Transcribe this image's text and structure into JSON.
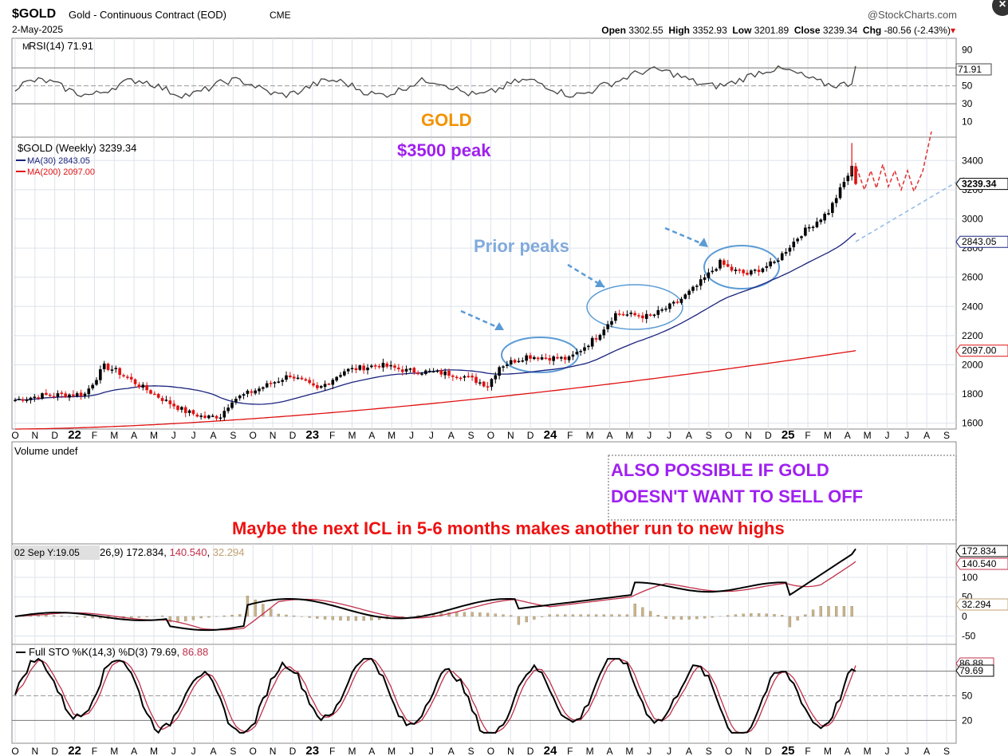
{
  "header": {
    "symbol": "$GOLD",
    "name": "Gold - Continuous Contract (EOD)",
    "exchange": "CME",
    "date": "2-May-2025",
    "source": "@StockCharts.com",
    "open_label": "Open",
    "open": "3302.55",
    "high_label": "High",
    "high": "3352.93",
    "low_label": "Low",
    "low": "3201.89",
    "close_label": "Close",
    "close": "3239.34",
    "chg_label": "Chg",
    "chg": "-80.56 (-2.43%)",
    "chg_arrow": "▾"
  },
  "rsi_panel": {
    "label": "RSI(14) 71.91",
    "value_tag": "71.91",
    "ticks": [
      90,
      70,
      50,
      30,
      10
    ],
    "lines": [
      70,
      50,
      30
    ]
  },
  "price_panel": {
    "legend_main": "$GOLD (Weekly) 3239.34",
    "legend_ma30": "MA(30) 2843.05",
    "legend_ma200": "MA(200) 2097.00",
    "ticks": [
      3400,
      3200,
      3000,
      2800,
      2600,
      2400,
      2200,
      2000,
      1800,
      1600
    ],
    "close_tag": "3239.34",
    "ma30_tag": "2843.05",
    "ma200_tag": "2097.00",
    "colors": {
      "up": "#000000",
      "down": "#e01010",
      "ma30": "#1a237e",
      "ma200": "#e01010"
    }
  },
  "annotations": {
    "gold": "GOLD",
    "peak": "$3500 peak",
    "prior_peaks": "Prior peaks",
    "also_possible": "ALSO POSSIBLE IF GOLD DOESN'T WANT TO SELL OFF",
    "next_icl": "Maybe the next ICL in 5-6 months makes another run to new highs",
    "colors": {
      "gold": "#f39200",
      "peak": "#a020f0",
      "prior": "#80aadc",
      "also": "#a020f0",
      "icl": "#ee1111"
    }
  },
  "volume_panel": {
    "label": "Volume undef"
  },
  "macd_panel": {
    "label": "MACD(12,26,9) 172.834, 140.540, 32.294",
    "label_prefix": "26,9) 172.834, ",
    "label_signal": "140.540",
    "label_hist": "32.294",
    "overlay": "02 Sep Y:19.05",
    "ticks": [
      "100",
      "50",
      "0",
      "-50"
    ],
    "tags": [
      "172.834",
      "140.540",
      "32.294"
    ]
  },
  "sto_panel": {
    "label_prefix": "Full STO %K(14,3) %D(3) 79.69, ",
    "label_d": "86.88",
    "ticks": [
      "50",
      "20"
    ],
    "tags": [
      "86.88",
      "79.69"
    ]
  },
  "x_axis": {
    "labels": [
      "O",
      "N",
      "D",
      "22",
      "F",
      "M",
      "A",
      "M",
      "J",
      "J",
      "A",
      "S",
      "O",
      "N",
      "D",
      "23",
      "F",
      "M",
      "A",
      "M",
      "J",
      "J",
      "A",
      "S",
      "O",
      "N",
      "D",
      "24",
      "F",
      "M",
      "A",
      "M",
      "J",
      "J",
      "A",
      "S",
      "O",
      "N",
      "D",
      "25",
      "F",
      "M",
      "A",
      "M",
      "J",
      "J",
      "A",
      "S"
    ],
    "bold": [
      "22",
      "23",
      "24",
      "25"
    ]
  },
  "chart_data": {
    "type": "candlestick",
    "title": "$GOLD Gold - Continuous Contract (EOD) Weekly",
    "series": [
      {
        "name": "$GOLD (Weekly)",
        "x": [
          "2021-10",
          "2021-12",
          "2022-03",
          "2022-05",
          "2022-07",
          "2022-09",
          "2022-11",
          "2023-01",
          "2023-03",
          "2023-05",
          "2023-07",
          "2023-09",
          "2023-10",
          "2023-12",
          "2024-02",
          "2024-04",
          "2024-06",
          "2024-08",
          "2024-10",
          "2024-12",
          "2025-02",
          "2025-04",
          "2025-05"
        ],
        "close": [
          1760,
          1780,
          1980,
          1850,
          1720,
          1650,
          1740,
          1920,
          1980,
          2030,
          1950,
          1930,
          1840,
          2050,
          2040,
          2330,
          2320,
          2450,
          2720,
          2620,
          2900,
          3400,
          3239.34
        ]
      },
      {
        "name": "MA(30)",
        "value": 2843.05
      },
      {
        "name": "MA(200)",
        "value": 2097.0
      }
    ],
    "ylim": [
      1560,
      3560
    ],
    "rsi_last": 71.91,
    "macd_last": [
      172.834,
      140.54,
      32.294
    ],
    "sto_last": [
      79.69,
      86.88
    ]
  }
}
